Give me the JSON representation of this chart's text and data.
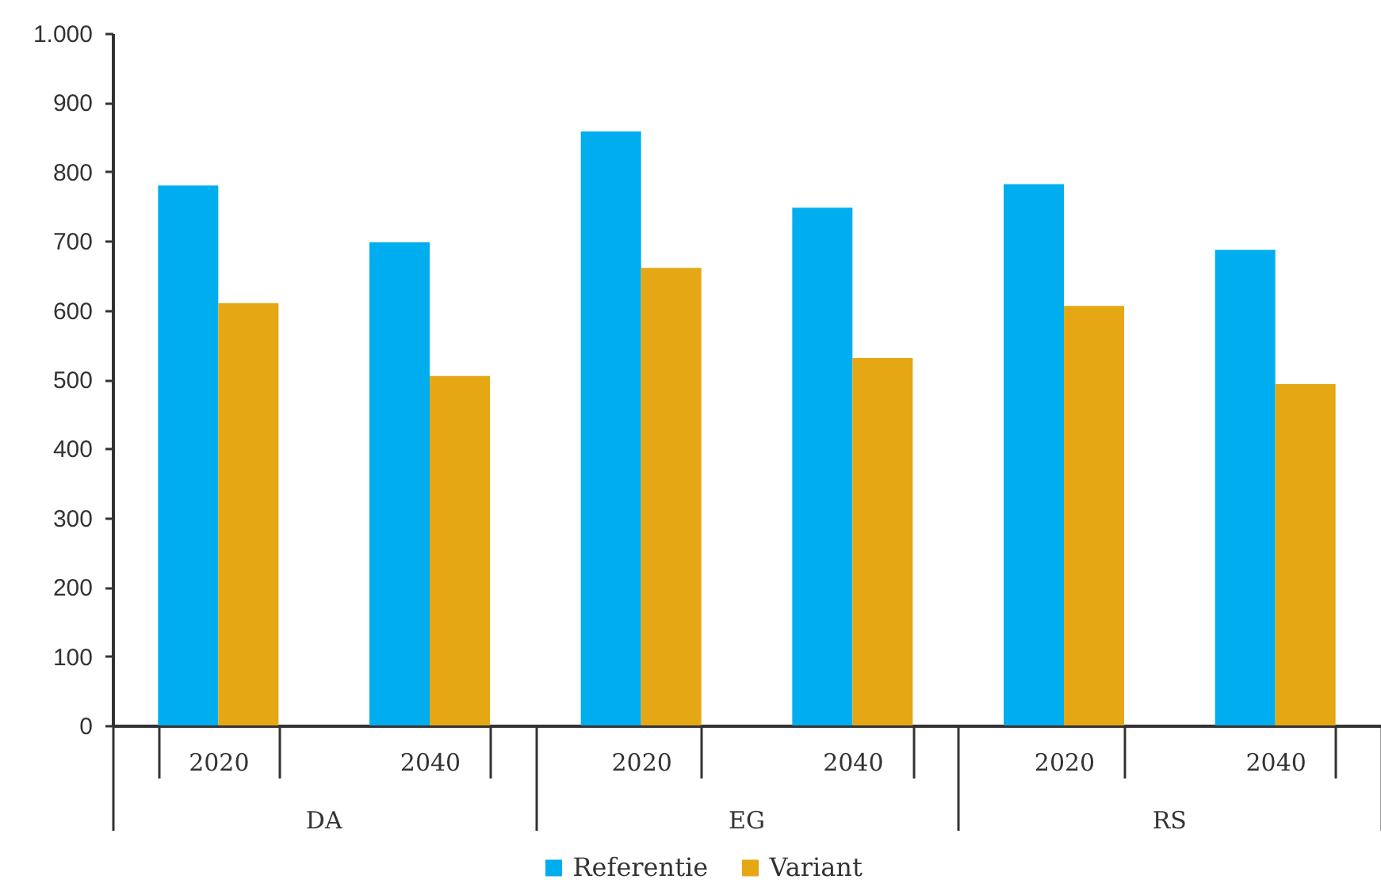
{
  "chart_data": {
    "type": "bar",
    "categories": [
      "2020",
      "2040",
      "2020",
      "2040",
      "2020",
      "2040"
    ],
    "annotations": [
      "DA",
      "EG",
      "RS"
    ],
    "series": [
      {
        "name": "Referentie",
        "color": "#00aeef",
        "values": [
          780,
          698,
          858,
          748,
          782,
          687
        ]
      },
      {
        "name": "Variant",
        "color": "#e5a713",
        "values": [
          610,
          505,
          661,
          531,
          606,
          493
        ]
      }
    ],
    "ylim": [
      0,
      1000
    ],
    "yticks": [
      0,
      100,
      200,
      300,
      400,
      500,
      600,
      700,
      800,
      900,
      {
        "value": 1000,
        "label": "1.000"
      }
    ],
    "grid": false,
    "legend": "bottom"
  }
}
